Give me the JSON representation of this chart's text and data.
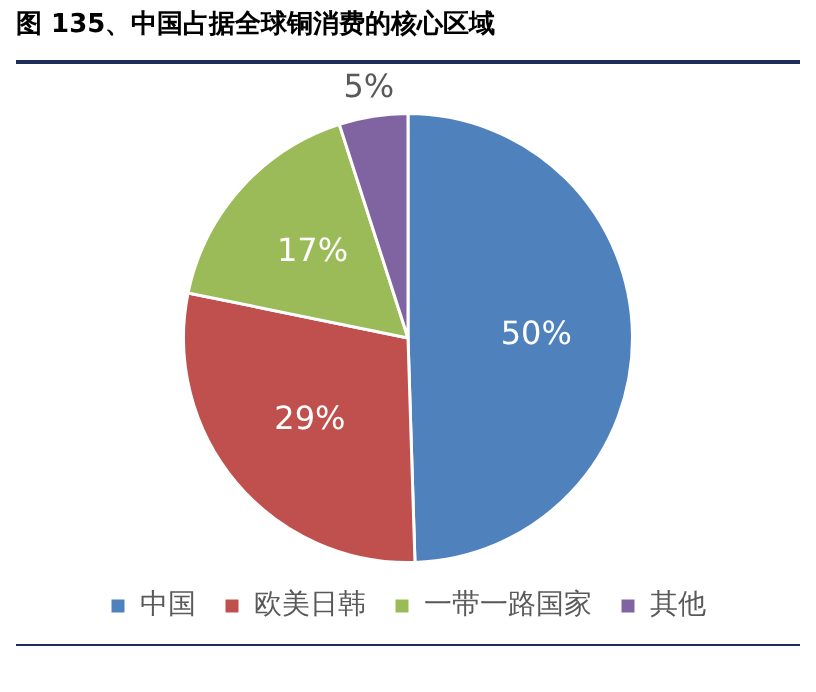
{
  "chart_data": {
    "type": "pie",
    "title": "图 135、中国占据全球铜消费的核心区域",
    "categories": [
      "中国",
      "欧美日韩",
      "一带一路国家",
      "其他"
    ],
    "values": [
      50,
      29,
      17,
      5
    ],
    "colors": [
      "#4f81bd",
      "#c0504d",
      "#9bbb59",
      "#8064a2"
    ],
    "value_labels": [
      "50%",
      "29%",
      "17%",
      "5%"
    ],
    "legend": "bottom"
  }
}
